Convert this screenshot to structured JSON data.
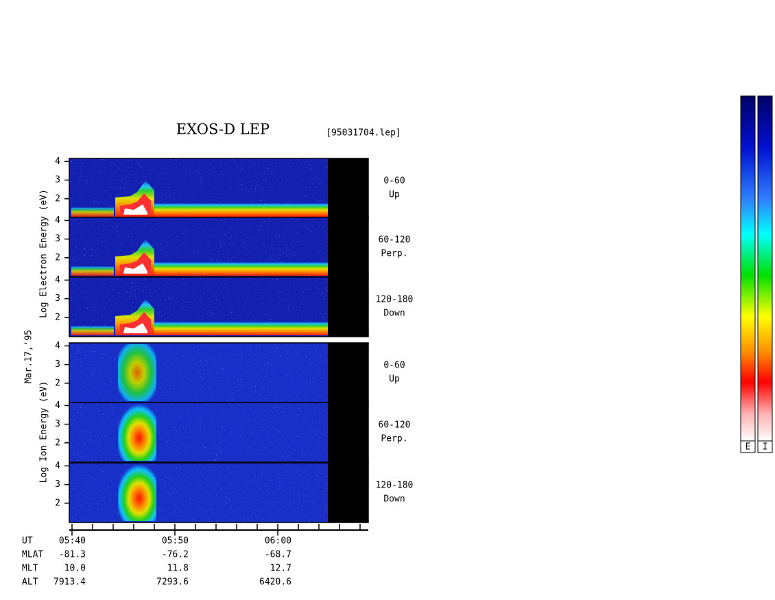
{
  "chart_data": {
    "type": "spectrogram",
    "title": "EXOS-D LEP",
    "file": "[95031704.lep]",
    "date": "Mar.17,'95",
    "electron_label": "Log  Electron  Energy (eV)",
    "ion_label": "Log  Ion  Energy (eV)",
    "ylim": [
      1,
      4.2
    ],
    "panels": [
      {
        "yticks": [
          2,
          3,
          4
        ],
        "label": [
          "0-60",
          "Up"
        ]
      },
      {
        "yticks": [
          2,
          3,
          4
        ],
        "label": [
          "60-120",
          "Perp."
        ]
      },
      {
        "yticks": [
          2,
          3,
          4
        ],
        "label": [
          "120-180",
          "Down"
        ]
      },
      {
        "yticks": [
          2,
          3,
          4
        ],
        "label": [
          "0-60",
          "Up"
        ]
      },
      {
        "yticks": [
          2,
          3,
          4
        ],
        "label": [
          "60-120",
          "Perp."
        ]
      },
      {
        "yticks": [
          2,
          3,
          4
        ],
        "label": [
          "120-180",
          "Down"
        ]
      }
    ],
    "ephemeris": [
      [
        "UT",
        "05:40",
        "05:50",
        "06:00"
      ],
      [
        "MLAT",
        "-81.3",
        "-76.2",
        "-68.7"
      ],
      [
        "MLT",
        "10.0",
        "11.8",
        "12.7"
      ],
      [
        "ALT",
        "7913.4",
        "7293.6",
        "6420.6"
      ]
    ],
    "colorbars": [
      "E",
      "I"
    ]
  }
}
